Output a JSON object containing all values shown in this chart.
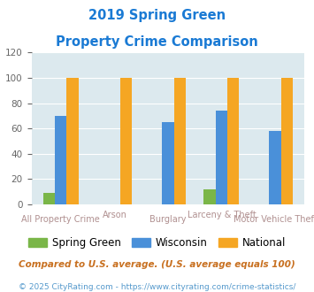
{
  "title_line1": "2019 Spring Green",
  "title_line2": "Property Crime Comparison",
  "categories": [
    "All Property Crime",
    "Arson",
    "Burglary",
    "Larceny & Theft",
    "Motor Vehicle Theft"
  ],
  "spring_green": [
    9,
    0,
    0,
    12,
    0
  ],
  "wisconsin": [
    70,
    0,
    65,
    74,
    58
  ],
  "national": [
    100,
    100,
    100,
    100,
    100
  ],
  "color_green": "#7ab648",
  "color_blue": "#4a90d9",
  "color_orange": "#f5a623",
  "bg_color": "#dce9ee",
  "ylim": [
    0,
    120
  ],
  "yticks": [
    0,
    20,
    40,
    60,
    80,
    100,
    120
  ],
  "label_color": "#b09090",
  "footnote1": "Compared to U.S. average. (U.S. average equals 100)",
  "footnote2": "© 2025 CityRating.com - https://www.cityrating.com/crime-statistics/",
  "title_color": "#1a7ad4",
  "footnote1_color": "#c87020",
  "footnote2_color": "#5599cc"
}
